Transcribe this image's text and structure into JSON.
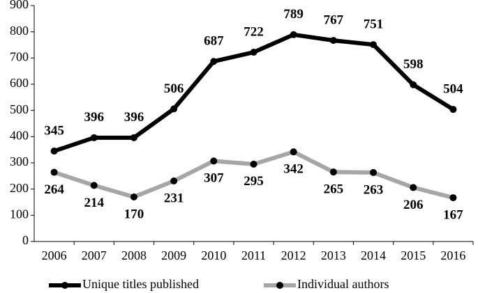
{
  "chart_data": {
    "type": "line",
    "categories": [
      "2006",
      "2007",
      "2008",
      "2009",
      "2010",
      "2011",
      "2012",
      "2013",
      "2014",
      "2015",
      "2016"
    ],
    "series": [
      {
        "name": "Unique titles published",
        "color": "#000000",
        "values": [
          345,
          396,
          396,
          506,
          687,
          722,
          789,
          767,
          751,
          598,
          504
        ]
      },
      {
        "name": "Individual authors",
        "color": "#a6a6a6",
        "values": [
          264,
          214,
          170,
          231,
          307,
          295,
          342,
          265,
          263,
          206,
          167
        ]
      }
    ],
    "ylim": [
      0,
      900
    ],
    "yticks": [
      0,
      100,
      200,
      300,
      400,
      500,
      600,
      700,
      800,
      900
    ],
    "grid": false,
    "legend": "bottom"
  }
}
